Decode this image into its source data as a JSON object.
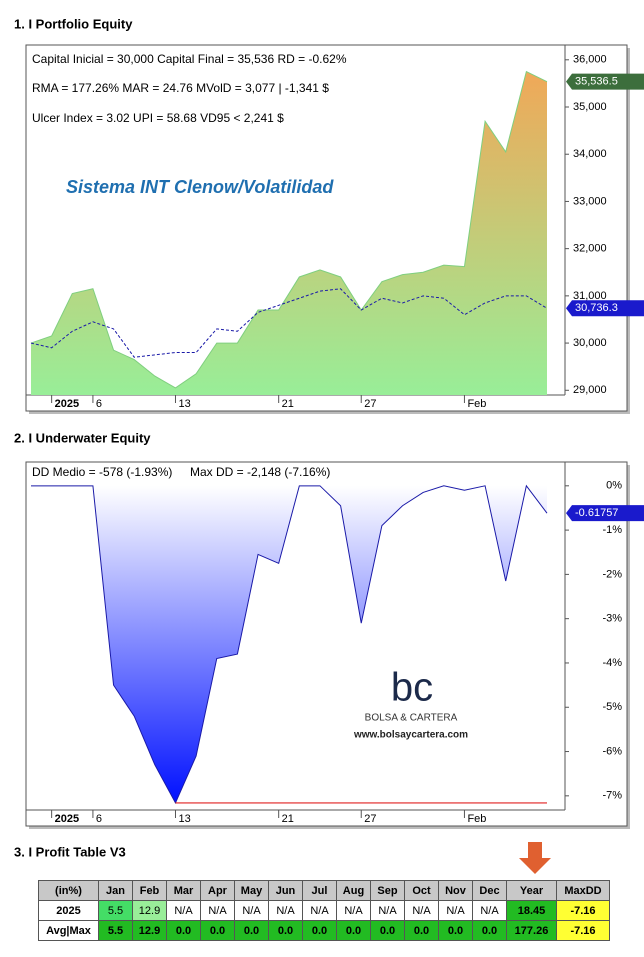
{
  "chart_data": [
    {
      "type": "area",
      "title": "1. I Portfolio Equity",
      "annotations": [
        "Capital Inicial = 30,000  Capital Final = 35,536  RD = -0.62%",
        "RMA = 177.26%   MAR = 24.76   MVolD = 3,077 | -1,341 $",
        "Ulcer Index = 3.02   UPI = 58.68   VD95 < 2,241 $"
      ],
      "subtitle": "Sistema INT Clenow/Volatilidad",
      "categories": [
        null,
        "2025",
        null,
        "6",
        null,
        null,
        null,
        "13",
        null,
        null,
        null,
        null,
        "21",
        null,
        null,
        null,
        "27",
        null,
        null,
        null,
        null,
        "Feb",
        null,
        null,
        null,
        null
      ],
      "series": [
        {
          "style": "area",
          "color": "#7fcf7f",
          "gradient": [
            "#98ee98",
            "#f0a858"
          ],
          "label_color": "#3c6e3c",
          "values": [
            30000,
            30150,
            31050,
            31150,
            29850,
            29650,
            29300,
            29050,
            29350,
            30000,
            30000,
            30700,
            30700,
            31400,
            31550,
            31400,
            30700,
            31300,
            31450,
            31500,
            31650,
            31620,
            34700,
            34050,
            35750,
            35536.5
          ],
          "value_labels": [
            null,
            null,
            null,
            null,
            null,
            null,
            null,
            null,
            null,
            null,
            null,
            null,
            null,
            null,
            null,
            null,
            null,
            null,
            null,
            null,
            null,
            null,
            null,
            null,
            null,
            "35,536.5"
          ]
        },
        {
          "style": "dashed",
          "color": "#1a1aa8",
          "label_color": "#1a1acc",
          "values": [
            30000,
            29900,
            30250,
            30450,
            30300,
            29700,
            29750,
            29800,
            29800,
            30300,
            30250,
            30650,
            30800,
            30950,
            31100,
            31150,
            30700,
            30950,
            30850,
            31000,
            30950,
            30600,
            30850,
            31000,
            31000,
            30736.3
          ],
          "value_labels": [
            null,
            null,
            null,
            null,
            null,
            null,
            null,
            null,
            null,
            null,
            null,
            null,
            null,
            null,
            null,
            null,
            null,
            null,
            null,
            null,
            null,
            null,
            null,
            null,
            null,
            "30,736.3"
          ]
        }
      ],
      "ylim": [
        28900,
        36250
      ],
      "yticks": [
        {
          "value": 29000,
          "label": "29,000"
        },
        {
          "value": 30000,
          "label": "30,000"
        },
        {
          "value": 31000,
          "label": "31,000"
        },
        {
          "value": 32000,
          "label": "32,000"
        },
        {
          "value": 33000,
          "label": "33,000"
        },
        {
          "value": 34000,
          "label": "34,000"
        },
        {
          "value": 35000,
          "label": "35,000"
        },
        {
          "value": 36000,
          "label": "36,000"
        }
      ]
    },
    {
      "type": "area",
      "title": "2. I Underwater Equity",
      "annotations": [
        "DD Medio = -578 (-1.93%)",
        "Max DD = -2,148 (-7.16%)"
      ],
      "categories": [
        null,
        "2025",
        null,
        "6",
        null,
        null,
        null,
        "13",
        null,
        null,
        null,
        null,
        "21",
        null,
        null,
        null,
        "27",
        null,
        null,
        null,
        null,
        "Feb",
        null,
        null,
        null,
        null
      ],
      "series": [
        {
          "style": "area",
          "color": "#1a1aa8",
          "gradient": [
            "#ffffff",
            "#0010ff"
          ],
          "label_color": "#1a1acc",
          "values": [
            0,
            0,
            0,
            0,
            -4.5,
            -5.2,
            -6.3,
            -7.16,
            -6.1,
            -3.9,
            -3.8,
            -1.55,
            -1.75,
            0,
            0,
            -0.45,
            -3.1,
            -0.9,
            -0.45,
            -0.15,
            0,
            -0.1,
            0,
            -2.15,
            0,
            -0.61757
          ]
        }
      ],
      "max_dd": -7.16,
      "max_dd_color": "#e02020",
      "watermark": {
        "logo": "bc",
        "name": "BOLSA & CARTERA",
        "url": "www.bolsaycartera.com"
      },
      "ylim": [
        -7.32,
        0.47
      ],
      "yticks": [
        {
          "value": 0,
          "label": "0%"
        },
        {
          "value": -1,
          "label": "-1%"
        },
        {
          "value": -2,
          "label": "-2%"
        },
        {
          "value": -3,
          "label": "-3%"
        },
        {
          "value": -4,
          "label": "-4%"
        },
        {
          "value": -5,
          "label": "-5%"
        },
        {
          "value": -6,
          "label": "-6%"
        },
        {
          "value": -7,
          "label": "-7%"
        }
      ]
    }
  ],
  "table": {
    "title": "3. I Profit Table V3",
    "columns": [
      "(in%)",
      "Jan",
      "Feb",
      "Mar",
      "Apr",
      "May",
      "Jun",
      "Jul",
      "Aug",
      "Sep",
      "Oct",
      "Nov",
      "Dec",
      "Year",
      "MaxDD"
    ],
    "rows": [
      [
        "2025",
        "5.5",
        "12.9",
        "N/A",
        "N/A",
        "N/A",
        "N/A",
        "N/A",
        "N/A",
        "N/A",
        "N/A",
        "N/A",
        "N/A",
        "18.45",
        "-7.16"
      ],
      [
        "Avg|Max",
        "5.5",
        "12.9",
        "0.0",
        "0.0",
        "0.0",
        "0.0",
        "0.0",
        "0.0",
        "0.0",
        "0.0",
        "0.0",
        "0.0",
        "177.26",
        "-7.16"
      ]
    ]
  }
}
